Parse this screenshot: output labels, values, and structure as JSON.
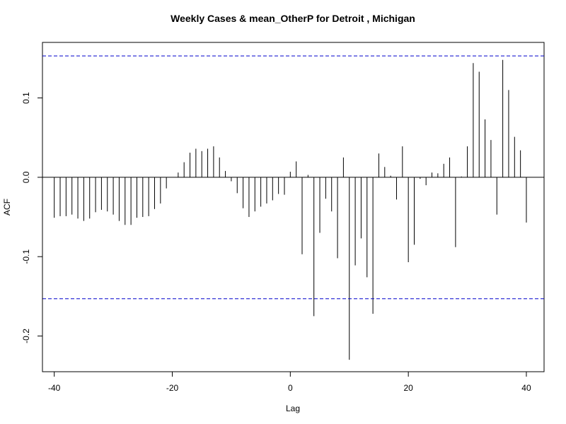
{
  "chart_data": {
    "type": "bar",
    "title": "Weekly Cases & mean_OtherP for Detroit , Michigan",
    "xlabel": "Lag",
    "ylabel": "ACF",
    "xlim": [
      -42,
      43
    ],
    "ylim": [
      -0.245,
      0.17
    ],
    "x_ticks": [
      -40,
      -20,
      0,
      20,
      40
    ],
    "x_tick_labels": [
      "-40",
      "-20",
      "0",
      "20",
      "40"
    ],
    "y_ticks": [
      -0.2,
      -0.1,
      0.0,
      0.1
    ],
    "y_tick_labels": [
      "-0.2",
      "-0.1",
      "0.0",
      "0.1"
    ],
    "confidence_bounds": [
      0.153,
      -0.153
    ],
    "confidence_line_color": "#0000cc",
    "bar_color": "#000000",
    "x": [
      -40,
      -39,
      -38,
      -37,
      -36,
      -35,
      -34,
      -33,
      -32,
      -31,
      -30,
      -29,
      -28,
      -27,
      -26,
      -25,
      -24,
      -23,
      -22,
      -21,
      -20,
      -19,
      -18,
      -17,
      -16,
      -15,
      -14,
      -13,
      -12,
      -11,
      -10,
      -9,
      -8,
      -7,
      -6,
      -5,
      -4,
      -3,
      -2,
      -1,
      0,
      1,
      2,
      3,
      4,
      5,
      6,
      7,
      8,
      9,
      10,
      11,
      12,
      13,
      14,
      15,
      16,
      17,
      18,
      19,
      20,
      21,
      22,
      23,
      24,
      25,
      26,
      27,
      28,
      29,
      30,
      31,
      32,
      33,
      34,
      35,
      36,
      37,
      38,
      39,
      40
    ],
    "values": [
      -0.051,
      -0.049,
      -0.049,
      -0.047,
      -0.052,
      -0.055,
      -0.052,
      -0.044,
      -0.041,
      -0.043,
      -0.047,
      -0.055,
      -0.06,
      -0.06,
      -0.051,
      -0.05,
      -0.049,
      -0.04,
      -0.033,
      -0.014,
      0.0,
      0.006,
      0.019,
      0.031,
      0.036,
      0.033,
      0.036,
      0.039,
      0.025,
      0.008,
      -0.005,
      -0.02,
      -0.039,
      -0.05,
      -0.043,
      -0.037,
      -0.033,
      -0.029,
      -0.021,
      -0.022,
      0.007,
      0.02,
      -0.097,
      0.003,
      -0.175,
      -0.07,
      -0.027,
      -0.043,
      -0.102,
      0.025,
      -0.23,
      -0.111,
      -0.077,
      -0.126,
      -0.172,
      0.03,
      0.013,
      0.002,
      -0.028,
      0.039,
      -0.107,
      -0.085,
      -0.002,
      -0.01,
      0.006,
      0.005,
      0.017,
      0.025,
      -0.088,
      0.001,
      0.039,
      0.144,
      0.133,
      0.073,
      0.047,
      -0.047,
      0.148,
      0.11,
      0.051,
      0.034,
      -0.057
    ]
  }
}
